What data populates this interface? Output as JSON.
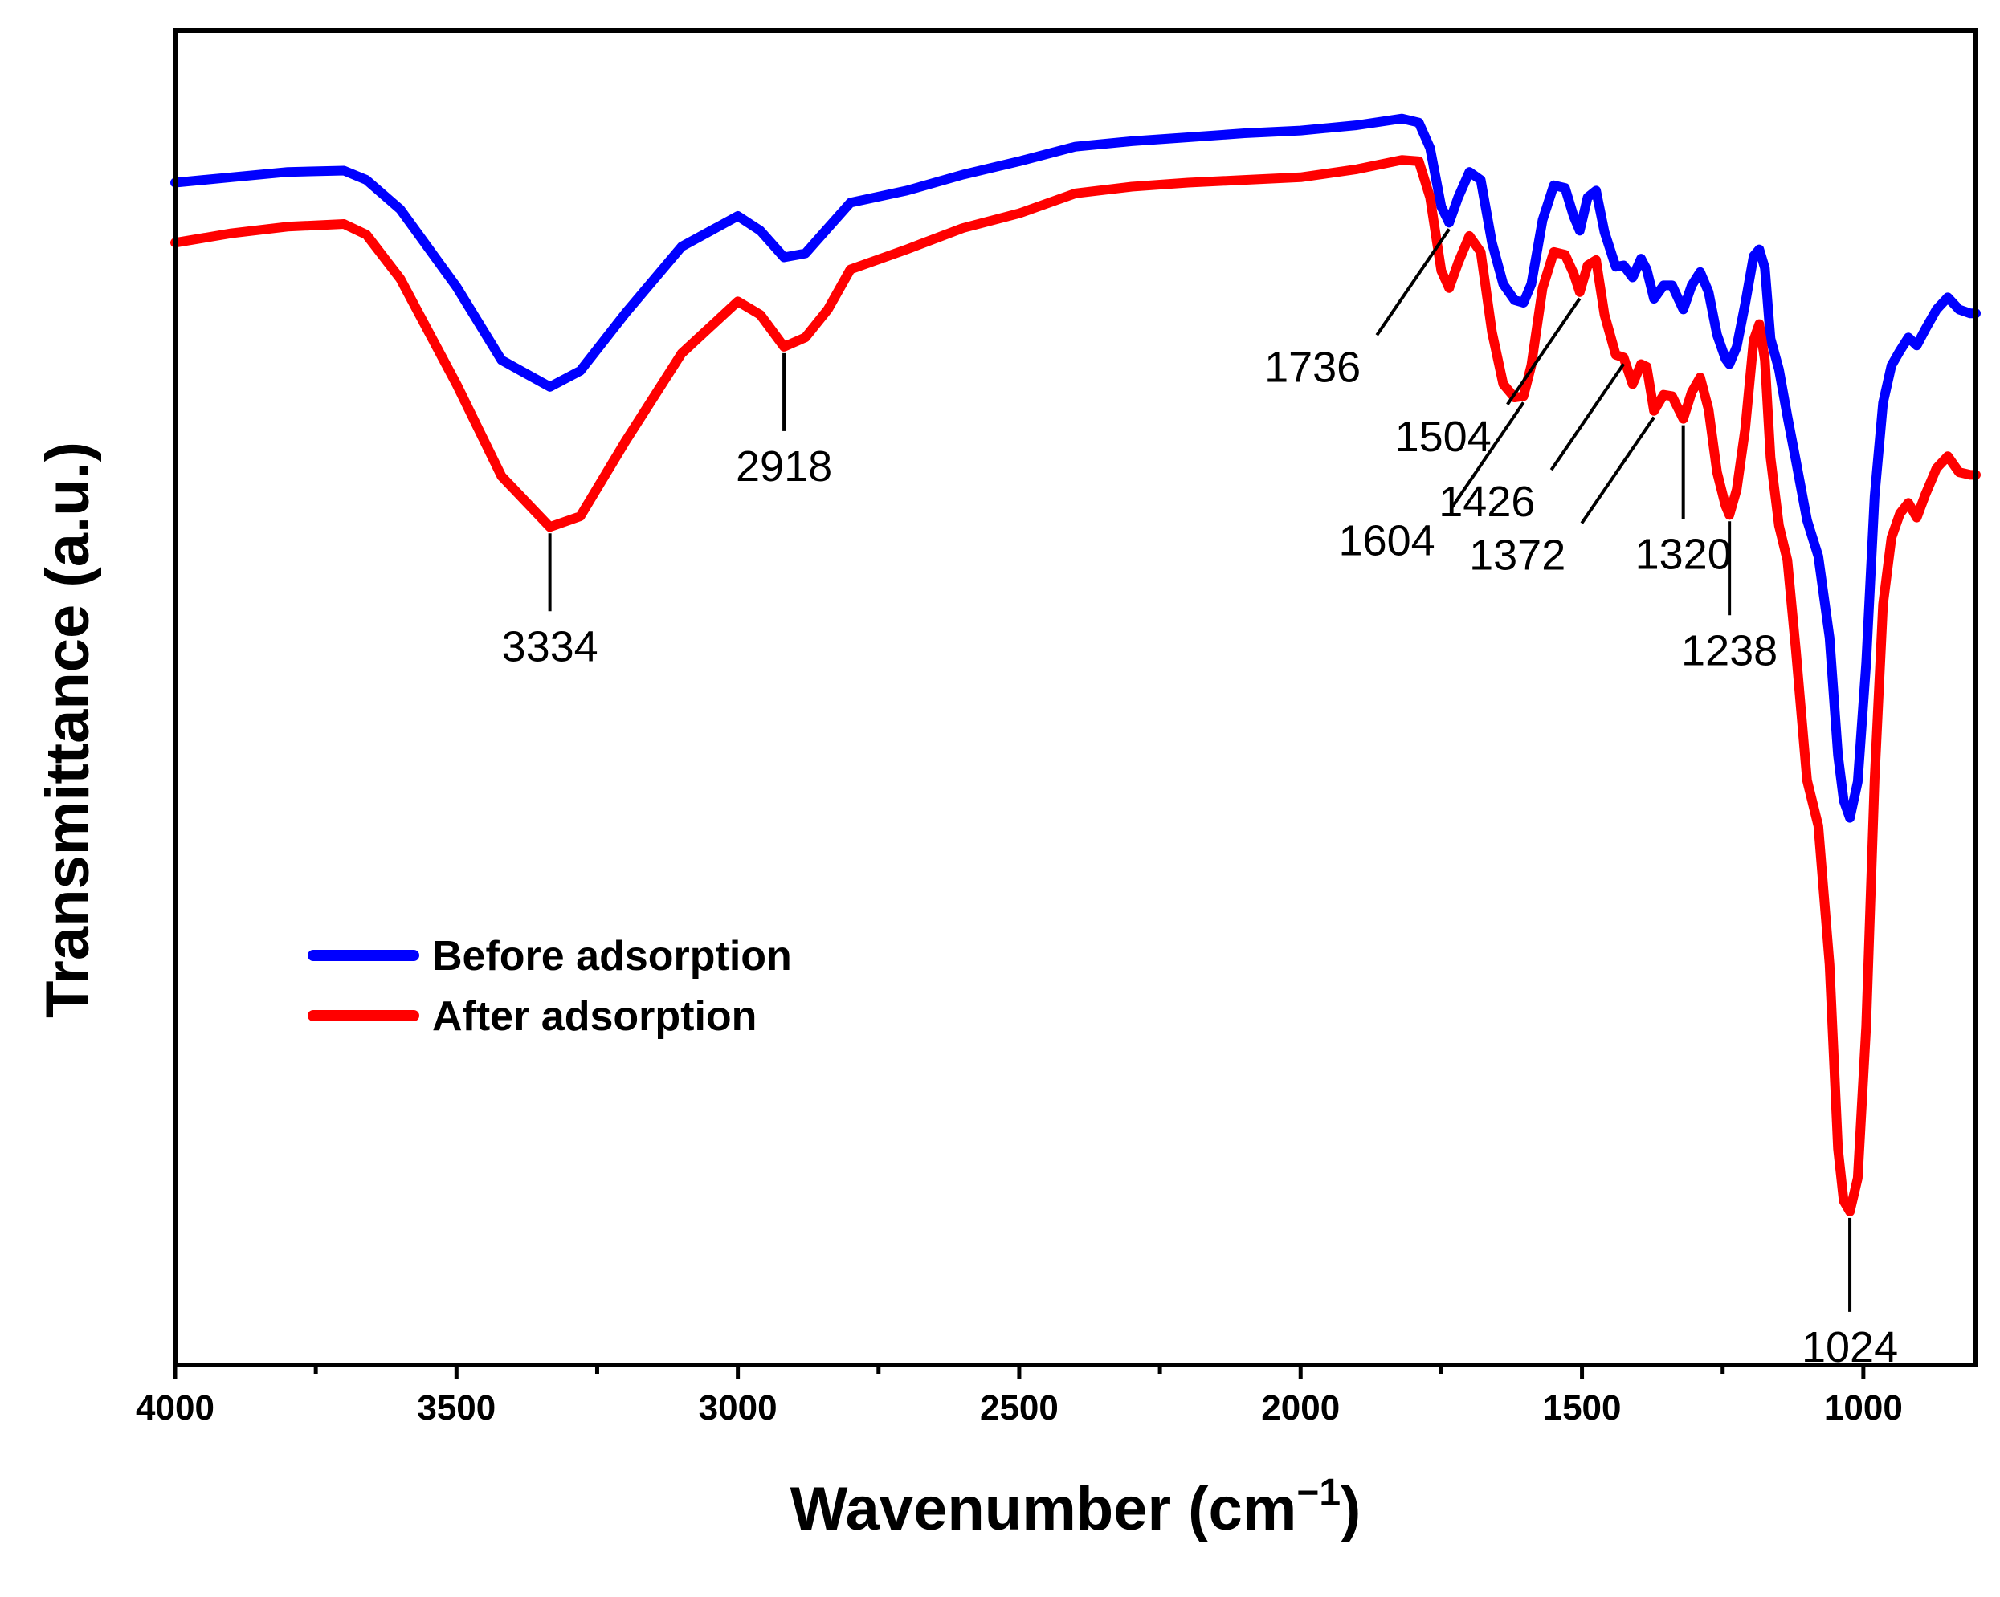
{
  "chart_data": {
    "type": "line",
    "xlabel_main": "Wavenumber (cm",
    "xlabel_sup": "−1",
    "xlabel_close": ")",
    "ylabel": "Transmittance (a.u.)",
    "xlim": [
      4000,
      800
    ],
    "ylim": [
      0,
      100
    ],
    "x_reversed": true,
    "y_ticks_shown": false,
    "x_ticks": [
      "4000",
      "3500",
      "3000",
      "2500",
      "2000",
      "1500",
      "1000"
    ],
    "legend_position": "lower-left",
    "grid": false,
    "series": [
      {
        "name": "Before adsorption",
        "color": "#0000ff",
        "points": [
          [
            4000,
            88.6
          ],
          [
            3900,
            89.0
          ],
          [
            3800,
            89.4
          ],
          [
            3700,
            89.5
          ],
          [
            3660,
            88.8
          ],
          [
            3600,
            86.6
          ],
          [
            3500,
            80.8
          ],
          [
            3420,
            75.3
          ],
          [
            3334,
            73.3
          ],
          [
            3280,
            74.5
          ],
          [
            3200,
            78.8
          ],
          [
            3100,
            83.8
          ],
          [
            3000,
            86.1
          ],
          [
            2960,
            85.0
          ],
          [
            2918,
            83.0
          ],
          [
            2880,
            83.3
          ],
          [
            2840,
            85.2
          ],
          [
            2800,
            87.1
          ],
          [
            2700,
            88.0
          ],
          [
            2600,
            89.2
          ],
          [
            2500,
            90.2
          ],
          [
            2400,
            91.3
          ],
          [
            2300,
            91.7
          ],
          [
            2200,
            92.0
          ],
          [
            2100,
            92.3
          ],
          [
            2000,
            92.5
          ],
          [
            1900,
            92.9
          ],
          [
            1820,
            93.4
          ],
          [
            1790,
            93.1
          ],
          [
            1770,
            91.2
          ],
          [
            1750,
            86.8
          ],
          [
            1736,
            85.6
          ],
          [
            1720,
            87.5
          ],
          [
            1700,
            89.4
          ],
          [
            1680,
            88.8
          ],
          [
            1660,
            84.1
          ],
          [
            1640,
            81.0
          ],
          [
            1620,
            79.8
          ],
          [
            1604,
            79.6
          ],
          [
            1590,
            81.0
          ],
          [
            1570,
            85.8
          ],
          [
            1550,
            88.4
          ],
          [
            1530,
            88.2
          ],
          [
            1515,
            86.1
          ],
          [
            1504,
            85.0
          ],
          [
            1490,
            87.5
          ],
          [
            1475,
            88.0
          ],
          [
            1460,
            84.9
          ],
          [
            1440,
            82.3
          ],
          [
            1426,
            82.4
          ],
          [
            1410,
            81.5
          ],
          [
            1395,
            82.9
          ],
          [
            1385,
            82.1
          ],
          [
            1372,
            79.9
          ],
          [
            1355,
            80.9
          ],
          [
            1340,
            80.9
          ],
          [
            1320,
            79.1
          ],
          [
            1305,
            80.9
          ],
          [
            1290,
            81.9
          ],
          [
            1275,
            80.4
          ],
          [
            1260,
            77.2
          ],
          [
            1245,
            75.4
          ],
          [
            1238,
            75.0
          ],
          [
            1225,
            76.3
          ],
          [
            1210,
            79.5
          ],
          [
            1195,
            83.1
          ],
          [
            1185,
            83.6
          ],
          [
            1175,
            82.2
          ],
          [
            1165,
            76.9
          ],
          [
            1150,
            74.6
          ],
          [
            1135,
            71.1
          ],
          [
            1120,
            67.8
          ],
          [
            1100,
            63.3
          ],
          [
            1080,
            60.6
          ],
          [
            1060,
            54.5
          ],
          [
            1045,
            45.7
          ],
          [
            1035,
            42.3
          ],
          [
            1024,
            41.0
          ],
          [
            1010,
            43.7
          ],
          [
            995,
            52.6
          ],
          [
            980,
            65.1
          ],
          [
            965,
            72.1
          ],
          [
            950,
            74.9
          ],
          [
            935,
            76.0
          ],
          [
            920,
            77.0
          ],
          [
            905,
            76.4
          ],
          [
            890,
            77.6
          ],
          [
            870,
            79.1
          ],
          [
            850,
            80.0
          ],
          [
            830,
            79.1
          ],
          [
            810,
            78.8
          ],
          [
            800,
            78.8
          ]
        ]
      },
      {
        "name": "After adsorption",
        "color": "#ff0000",
        "points": [
          [
            4000,
            84.1
          ],
          [
            3900,
            84.8
          ],
          [
            3800,
            85.3
          ],
          [
            3700,
            85.5
          ],
          [
            3660,
            84.7
          ],
          [
            3600,
            81.4
          ],
          [
            3500,
            73.5
          ],
          [
            3420,
            66.6
          ],
          [
            3334,
            62.8
          ],
          [
            3280,
            63.6
          ],
          [
            3200,
            69.2
          ],
          [
            3100,
            75.8
          ],
          [
            3000,
            79.7
          ],
          [
            2960,
            78.7
          ],
          [
            2918,
            76.3
          ],
          [
            2880,
            77.0
          ],
          [
            2840,
            79.1
          ],
          [
            2800,
            82.1
          ],
          [
            2700,
            83.6
          ],
          [
            2600,
            85.2
          ],
          [
            2500,
            86.3
          ],
          [
            2400,
            87.8
          ],
          [
            2300,
            88.3
          ],
          [
            2200,
            88.6
          ],
          [
            2100,
            88.8
          ],
          [
            2000,
            89.0
          ],
          [
            1900,
            89.6
          ],
          [
            1820,
            90.3
          ],
          [
            1790,
            90.2
          ],
          [
            1770,
            87.5
          ],
          [
            1750,
            82.0
          ],
          [
            1736,
            80.7
          ],
          [
            1720,
            82.6
          ],
          [
            1700,
            84.6
          ],
          [
            1680,
            83.4
          ],
          [
            1660,
            77.4
          ],
          [
            1640,
            73.5
          ],
          [
            1620,
            72.5
          ],
          [
            1604,
            72.6
          ],
          [
            1590,
            74.9
          ],
          [
            1570,
            80.7
          ],
          [
            1550,
            83.4
          ],
          [
            1530,
            83.2
          ],
          [
            1515,
            81.8
          ],
          [
            1504,
            80.4
          ],
          [
            1490,
            82.4
          ],
          [
            1475,
            82.8
          ],
          [
            1460,
            78.7
          ],
          [
            1440,
            75.7
          ],
          [
            1426,
            75.5
          ],
          [
            1410,
            73.5
          ],
          [
            1395,
            75.0
          ],
          [
            1385,
            74.8
          ],
          [
            1372,
            71.5
          ],
          [
            1355,
            72.7
          ],
          [
            1340,
            72.6
          ],
          [
            1320,
            70.9
          ],
          [
            1305,
            72.9
          ],
          [
            1290,
            74.0
          ],
          [
            1275,
            71.6
          ],
          [
            1260,
            66.9
          ],
          [
            1245,
            64.4
          ],
          [
            1238,
            63.7
          ],
          [
            1225,
            65.6
          ],
          [
            1210,
            70.1
          ],
          [
            1195,
            76.8
          ],
          [
            1185,
            78.0
          ],
          [
            1175,
            75.3
          ],
          [
            1165,
            68.0
          ],
          [
            1150,
            62.9
          ],
          [
            1135,
            60.3
          ],
          [
            1120,
            53.6
          ],
          [
            1100,
            43.8
          ],
          [
            1080,
            40.4
          ],
          [
            1060,
            30.0
          ],
          [
            1045,
            16.2
          ],
          [
            1035,
            12.3
          ],
          [
            1024,
            11.5
          ],
          [
            1010,
            14.0
          ],
          [
            995,
            25.4
          ],
          [
            980,
            43.9
          ],
          [
            965,
            57.0
          ],
          [
            950,
            62.0
          ],
          [
            935,
            63.8
          ],
          [
            920,
            64.6
          ],
          [
            905,
            63.5
          ],
          [
            890,
            65.2
          ],
          [
            870,
            67.2
          ],
          [
            850,
            68.1
          ],
          [
            830,
            66.9
          ],
          [
            810,
            66.7
          ],
          [
            800,
            66.7
          ]
        ]
      }
    ],
    "annotations": [
      {
        "series": 1,
        "x": 3334,
        "label": "3334",
        "dir": "down"
      },
      {
        "series": 1,
        "x": 2918,
        "label": "2918",
        "dir": "down"
      },
      {
        "series": 0,
        "x": 1736,
        "label": "1736",
        "dir": "diag"
      },
      {
        "series": 1,
        "x": 1604,
        "label": "1604",
        "dir": "diag"
      },
      {
        "series": 1,
        "x": 1504,
        "label": "1504",
        "dir": "diag"
      },
      {
        "series": 1,
        "x": 1426,
        "label": "1426",
        "dir": "diag"
      },
      {
        "series": 1,
        "x": 1372,
        "label": "1372",
        "dir": "diag"
      },
      {
        "series": 1,
        "x": 1320,
        "label": "1320",
        "dir": "down"
      },
      {
        "series": 1,
        "x": 1238,
        "label": "1238",
        "dir": "down"
      },
      {
        "series": 1,
        "x": 1024,
        "label": "1024",
        "dir": "down"
      }
    ]
  }
}
